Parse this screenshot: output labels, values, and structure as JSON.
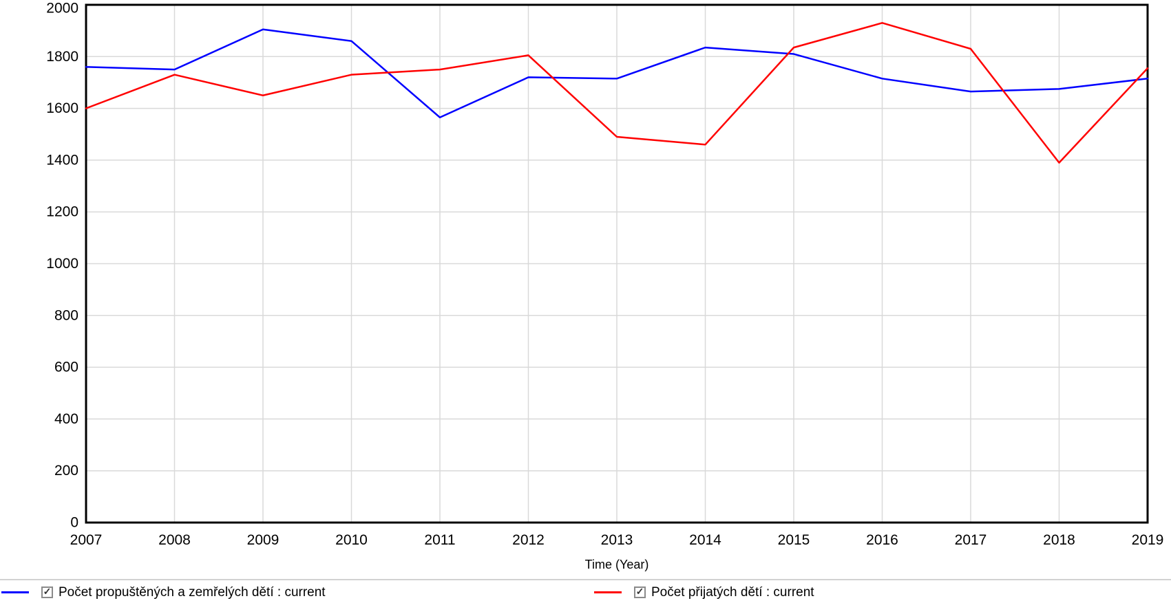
{
  "window": {
    "background": "#ffffff"
  },
  "chart_data": {
    "type": "line",
    "title": "",
    "xlabel": "Time (Year)",
    "ylabel": "",
    "x": [
      2007,
      2008,
      2009,
      2010,
      2011,
      2012,
      2013,
      2014,
      2015,
      2016,
      2017,
      2018,
      2019
    ],
    "series": [
      {
        "name": "Počet propuštěných a zemřelých dětí : current",
        "color": "#0000ff",
        "values": [
          1760,
          1750,
          1905,
          1860,
          1565,
          1720,
          1715,
          1835,
          1810,
          1715,
          1665,
          1675,
          1715
        ]
      },
      {
        "name": "Počet přijatých dětí : current",
        "color": "#ff0000",
        "values": [
          1600,
          1730,
          1650,
          1730,
          1750,
          1805,
          1490,
          1460,
          1835,
          1930,
          1830,
          1390,
          1755
        ]
      }
    ],
    "ylim": [
      0,
      2000
    ],
    "yticks": [
      0,
      200,
      400,
      600,
      800,
      1000,
      1200,
      1400,
      1600,
      1800,
      2000
    ],
    "xticks": [
      2007,
      2008,
      2009,
      2010,
      2011,
      2012,
      2013,
      2014,
      2015,
      2016,
      2017,
      2018,
      2019
    ],
    "grid": true,
    "legend_position": "bottom"
  },
  "legend": {
    "check_glyph": "✓",
    "items": [
      {
        "label": "Počet propuštěných a zemřelých dětí : current",
        "checked": true,
        "color": "#0000ff"
      },
      {
        "label": "Počet přijatých dětí : current",
        "checked": true,
        "color": "#ff0000"
      }
    ]
  },
  "colors": {
    "gridline": "#d9d9d9",
    "frame": "#000000",
    "separator": "#d2d2d2",
    "text": "#000000"
  }
}
